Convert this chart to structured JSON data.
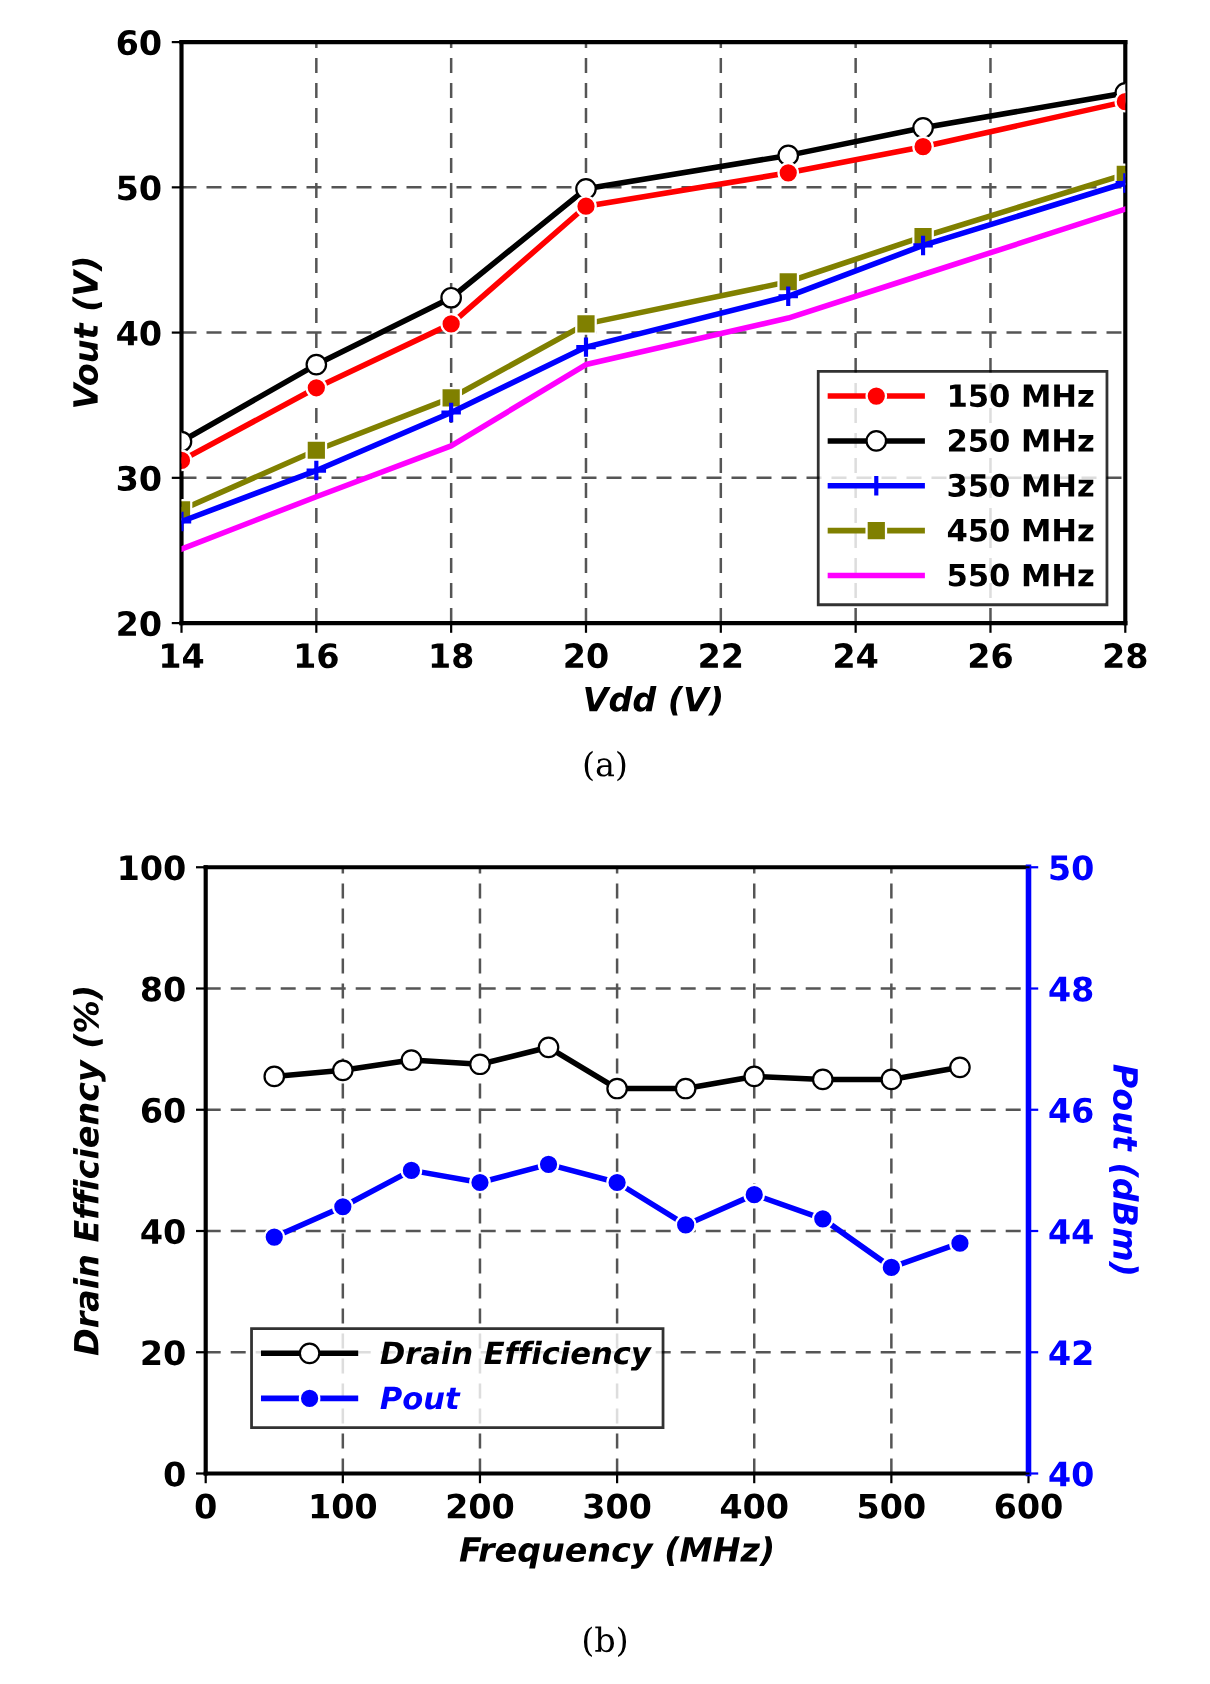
{
  "chart_data": [
    {
      "type": "line",
      "xlabel": "Vdd (V)",
      "ylabel": "Vout (V)",
      "x": [
        14,
        16,
        18,
        20,
        23,
        25,
        28
      ],
      "xlim": [
        14,
        28
      ],
      "xticks": [
        14,
        16,
        18,
        20,
        22,
        24,
        26,
        28
      ],
      "ylim": [
        20,
        60
      ],
      "yticks": [
        20,
        30,
        40,
        50,
        60
      ],
      "grid": true,
      "legend": "bottom right",
      "line_style": "solid",
      "annotations": [
        "(a)"
      ],
      "series": [
        {
          "name": "150 MHz",
          "color": "#ff0000",
          "marker": "circle",
          "values": [
            31.2,
            36.2,
            40.6,
            48.7,
            51.0,
            52.8,
            55.9
          ]
        },
        {
          "name": "250 MHz",
          "color": "#000000",
          "marker": "circle",
          "values": [
            32.5,
            37.8,
            42.4,
            49.9,
            52.2,
            54.1,
            56.5
          ]
        },
        {
          "name": "350 MHz",
          "color": "#0000ff",
          "marker": "cross",
          "values": [
            27.0,
            30.5,
            34.5,
            39.0,
            42.5,
            46.0,
            50.3
          ]
        },
        {
          "name": "450 MHz",
          "color": "#808000",
          "marker": "square",
          "values": [
            27.8,
            31.9,
            35.5,
            40.6,
            43.5,
            46.6,
            50.9
          ]
        },
        {
          "name": "550 MHz",
          "color": "#ff00ff",
          "marker": "none",
          "values": [
            25.1,
            28.7,
            32.2,
            37.8,
            41.0,
            44.0,
            48.5
          ]
        }
      ]
    },
    {
      "type": "line",
      "xlabel": "Frequency (MHz)",
      "ylabel": "Drain Efficiency (%)",
      "y2label": "Pout (dBm)",
      "x": [
        50,
        100,
        150,
        200,
        250,
        300,
        350,
        400,
        450,
        500,
        550
      ],
      "xlim": [
        0,
        600
      ],
      "xticks": [
        0,
        100,
        200,
        300,
        400,
        500,
        600
      ],
      "ylim": [
        0,
        100
      ],
      "yticks": [
        0,
        20,
        40,
        60,
        80,
        100
      ],
      "y2lim": [
        40,
        50
      ],
      "y2ticks": [
        40,
        42,
        44,
        46,
        48,
        50
      ],
      "grid": true,
      "legend": "bottom left",
      "line_style": "solid",
      "annotations": [
        "(b)"
      ],
      "series": [
        {
          "name": "Drain Efficiency",
          "color": "#000000",
          "marker": "circle",
          "values": [
            65.5,
            66.5,
            68.2,
            67.5,
            70.3,
            63.5,
            63.5,
            65.5,
            65,
            65,
            67
          ]
        },
        {
          "name": "Pout",
          "color": "#0000ff",
          "marker": "circle",
          "axis": "y2",
          "values": [
            43.9,
            44.4,
            45.0,
            44.8,
            45.1,
            44.8,
            44.1,
            44.6,
            44.2,
            43.4,
            43.8
          ]
        }
      ]
    }
  ]
}
